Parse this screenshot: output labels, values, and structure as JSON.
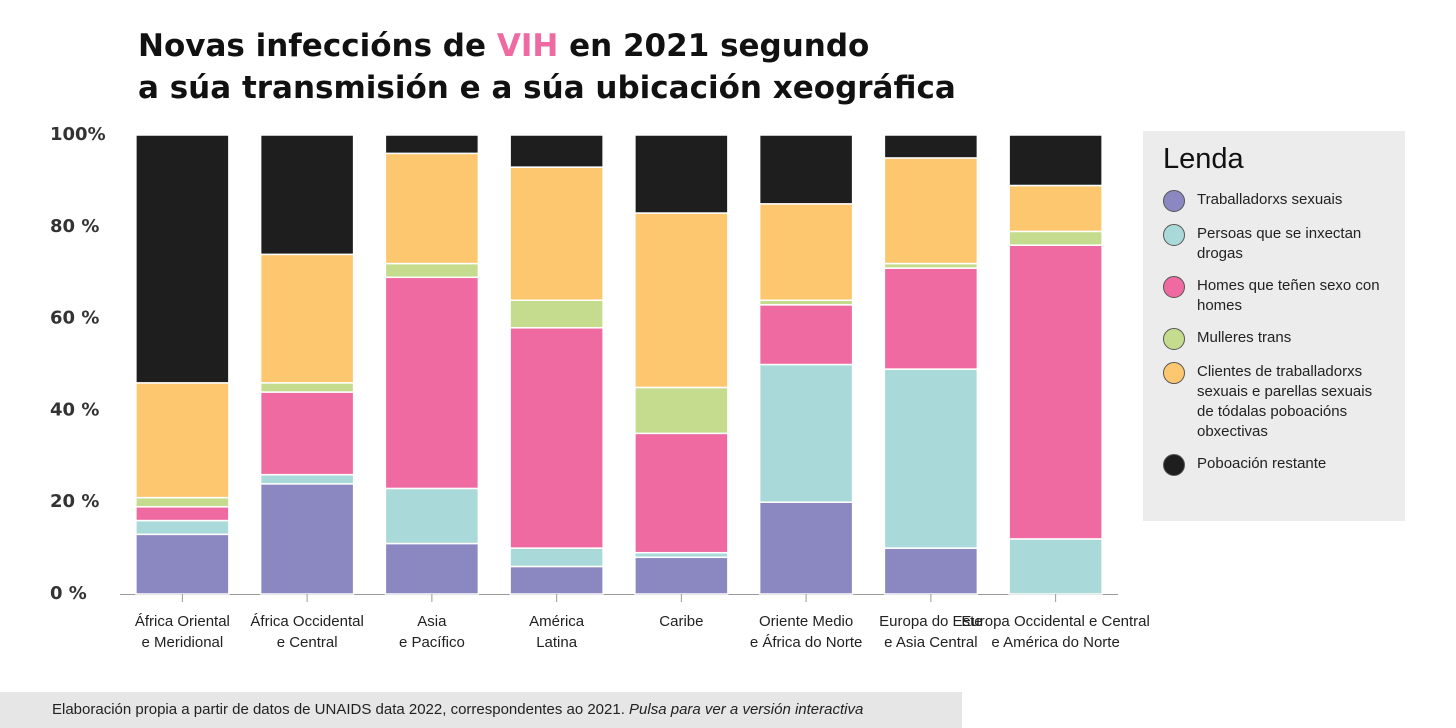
{
  "chart_data": {
    "type": "stacked_bar",
    "title": {
      "before": "Novas infeccións de ",
      "highlight": "VIH",
      "after": " en 2021 segundo",
      "line2": "a súa transmisión e a súa ubicación xeográfica"
    },
    "highlight_color": "#ee6aa0",
    "categories": [
      [
        "África Oriental",
        "e Meridional"
      ],
      [
        "África Occidental",
        "e Central"
      ],
      [
        "Asia",
        "e Pacífico"
      ],
      [
        "América",
        "Latina"
      ],
      [
        "Caribe"
      ],
      [
        "Oriente Medio",
        "e África do Norte"
      ],
      [
        "Europa do Este",
        "e Asia Central"
      ],
      [
        "Europa Occidental e Central",
        "e América do Norte"
      ]
    ],
    "series": [
      {
        "name": "Traballadorxs sexuais",
        "color": "#8b87c0",
        "values": [
          13,
          24,
          11,
          6,
          8,
          20,
          10,
          0
        ]
      },
      {
        "name": "Persoas que se inxectan drogas",
        "color": "#aad9d9",
        "values": [
          3,
          2,
          12,
          4,
          1,
          30,
          39,
          12
        ]
      },
      {
        "name": "Homes que teñen sexo con homes",
        "color": "#ee6aa0",
        "values": [
          3,
          18,
          46,
          48,
          26,
          13,
          22,
          64
        ]
      },
      {
        "name": "Mulleres trans",
        "color": "#c5dc8e",
        "values": [
          2,
          2,
          3,
          6,
          10,
          1,
          1,
          3
        ]
      },
      {
        "name": "Clientes de traballadorxs sexuais e parellas sexuais de tódalas poboacións obxectivas",
        "color": "#fcc76f",
        "values": [
          25,
          28,
          24,
          29,
          38,
          21,
          23,
          10
        ]
      },
      {
        "name": "Poboación restante",
        "color": "#1e1e1e",
        "values": [
          54,
          26,
          4,
          7,
          17,
          15,
          5,
          11
        ]
      }
    ],
    "ylim": [
      0,
      100
    ],
    "yticks": [
      {
        "value": 0,
        "label": "0 %"
      },
      {
        "value": 20,
        "label": "20 %"
      },
      {
        "value": 40,
        "label": "40 %"
      },
      {
        "value": 60,
        "label": "60 %"
      },
      {
        "value": 80,
        "label": "80 %"
      },
      {
        "value": 100,
        "label": "100%"
      }
    ],
    "legend_title": "Lenda",
    "legend": "right"
  },
  "footer": {
    "text": "Elaboración propia a partir de datos de UNAIDS data 2022, correspondentes ao 2021. ",
    "link": "Pulsa para ver a versión interactiva"
  }
}
